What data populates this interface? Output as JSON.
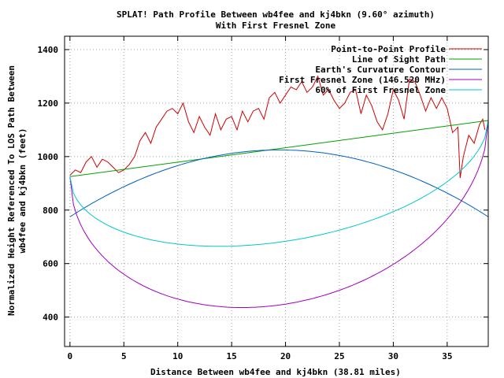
{
  "chart_data": {
    "type": "line",
    "title": "SPLAT! Path Profile Between wb4fee and kj4bkn (9.60° azimuth)",
    "subtitle": "With First Fresnel Zone",
    "xlabel": "Distance Between wb4fee and kj4bkn (38.81 miles)",
    "ylabel": [
      "Normalized Height Referenced To LOS Path Between",
      "wb4fee and kj4bkn (feet)"
    ],
    "xlim": [
      -0.5,
      38.81
    ],
    "ylim": [
      290,
      1450
    ],
    "xticks": [
      0,
      5,
      10,
      15,
      20,
      25,
      30,
      35
    ],
    "yticks": [
      400,
      600,
      800,
      1000,
      1200,
      1400
    ],
    "grid": true,
    "legend_position": "top-right",
    "series": [
      {
        "name": "Point-to-Point Profile",
        "color": "#d00000",
        "x": [
          0,
          0.5,
          1,
          1.5,
          2,
          2.5,
          3,
          3.5,
          4,
          4.5,
          5,
          5.5,
          6,
          6.5,
          7,
          7.5,
          8,
          8.5,
          9,
          9.5,
          10,
          10.5,
          11,
          11.5,
          12,
          12.5,
          13,
          13.5,
          14,
          14.5,
          15,
          15.5,
          16,
          16.5,
          17,
          17.5,
          18,
          18.5,
          19,
          19.5,
          20,
          20.5,
          21,
          21.5,
          22,
          22.5,
          23,
          23.5,
          24,
          24.5,
          25,
          25.5,
          26,
          26.5,
          27,
          27.5,
          28,
          28.5,
          29,
          29.5,
          30,
          30.5,
          31,
          31.5,
          32,
          32.5,
          33,
          33.5,
          34,
          34.5,
          35,
          35.5,
          36,
          36.2,
          36.5,
          37,
          37.5,
          38,
          38.3,
          38.5
        ],
        "y": [
          930,
          950,
          940,
          980,
          1000,
          960,
          990,
          980,
          960,
          940,
          950,
          970,
          1000,
          1060,
          1090,
          1050,
          1110,
          1140,
          1170,
          1180,
          1160,
          1200,
          1130,
          1090,
          1150,
          1110,
          1080,
          1160,
          1100,
          1140,
          1150,
          1100,
          1170,
          1130,
          1170,
          1180,
          1140,
          1220,
          1240,
          1200,
          1230,
          1260,
          1250,
          1280,
          1240,
          1260,
          1300,
          1230,
          1250,
          1210,
          1180,
          1200,
          1240,
          1250,
          1160,
          1230,
          1190,
          1130,
          1100,
          1160,
          1250,
          1210,
          1140,
          1290,
          1280,
          1230,
          1170,
          1220,
          1180,
          1220,
          1180,
          1090,
          1110,
          920,
          1000,
          1080,
          1050,
          1120,
          1140,
          1100
        ]
      },
      {
        "name": "Line of Sight Path",
        "color": "#00a000",
        "x": [
          0,
          38.81
        ],
        "y": [
          925,
          1135
        ]
      },
      {
        "name": "Earth's Curvature Contour",
        "color": "#0060c0",
        "x": [
          0,
          38.81
        ],
        "y": [
          775,
          775
        ],
        "peak": 1025
      },
      {
        "name": "First Fresnel Zone (146.520 MHz)",
        "color": "#a000c0",
        "x": [
          0,
          38.81
        ],
        "y": [
          925,
          1135
        ],
        "depth": 585
      },
      {
        "name": "60% of First Fresnel Zone",
        "color": "#00c8c8",
        "x": [
          0,
          38.81
        ],
        "y": [
          925,
          1135
        ],
        "depth": 350
      }
    ]
  }
}
